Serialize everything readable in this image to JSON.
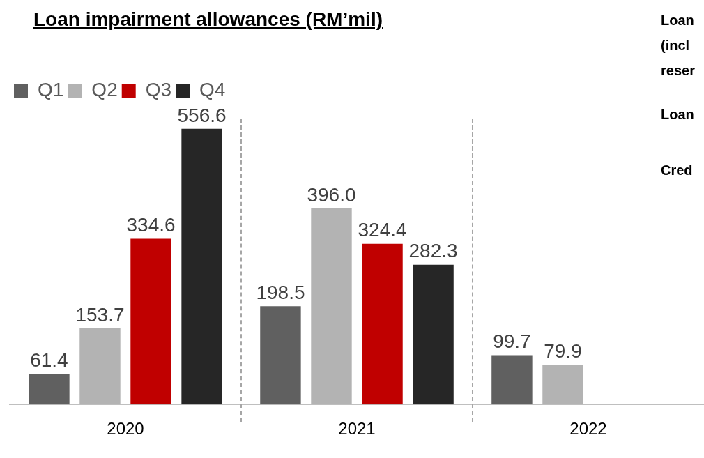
{
  "chart_data": {
    "type": "bar",
    "title": "Loan impairment allowances (RM’mil)",
    "categories": [
      "2020",
      "2021",
      "2022"
    ],
    "series": [
      {
        "name": "Q1",
        "color": "#606060",
        "values": [
          61.4,
          198.5,
          99.7
        ],
        "value_labels": [
          "61.4",
          "198.5",
          "99.7"
        ]
      },
      {
        "name": "Q2",
        "color": "#b3b3b3",
        "values": [
          153.7,
          396.0,
          79.9
        ],
        "value_labels": [
          "153.7",
          "396.0",
          "79.9"
        ]
      },
      {
        "name": "Q3",
        "color": "#c00000",
        "values": [
          334.6,
          324.4,
          null
        ],
        "value_labels": [
          "334.6",
          "324.4",
          null
        ]
      },
      {
        "name": "Q4",
        "color": "#262626",
        "values": [
          556.6,
          282.3,
          null
        ],
        "value_labels": [
          "556.6",
          "282.3",
          null
        ]
      }
    ],
    "legend": "top left",
    "grid": false,
    "annotations": [
      "Loan",
      "(incl",
      "reser",
      "Loan",
      "Cred"
    ]
  }
}
